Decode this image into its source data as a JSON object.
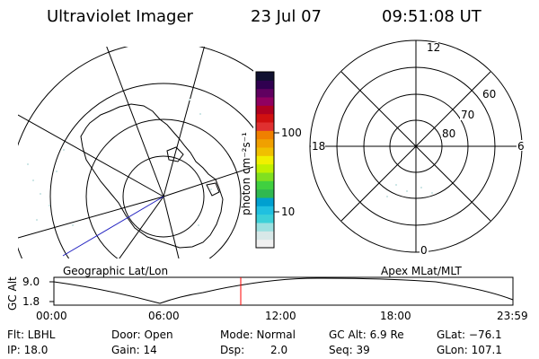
{
  "header": {
    "instrument": "Ultraviolet Imager",
    "date": "23 Jul 07",
    "time": "09:51:08 UT"
  },
  "left_map": {
    "caption": "Geographic Lat/Lon"
  },
  "right_map": {
    "caption": "Apex MLat/MLT",
    "mlt_labels": {
      "top": "12",
      "bottom": "0",
      "left": "18",
      "right": "6"
    },
    "lat_labels": [
      "60",
      "70",
      "80"
    ]
  },
  "colorbar": {
    "unit_label": "photon cm⁻²s⁻¹",
    "tick_labels": [
      "100",
      "10"
    ],
    "colors": [
      "#f0f0f0",
      "#d8e8e8",
      "#9be0e0",
      "#3cd0d8",
      "#20c0e0",
      "#00a0d0",
      "#30b850",
      "#40d040",
      "#80e020",
      "#c0f000",
      "#f0f000",
      "#f0c000",
      "#f0a000",
      "#f08000",
      "#e03030",
      "#d01010",
      "#b00020",
      "#900060",
      "#600060",
      "#300050",
      "#101030"
    ]
  },
  "altitude_plot": {
    "ylabel": "GC Alt",
    "yticks": [
      "9.0",
      "1.8"
    ],
    "xticks": [
      "00:00",
      "06:00",
      "12:00",
      "18:00",
      "23:59"
    ],
    "current_time_color": "#ff0000"
  },
  "info": {
    "filter": "Flt: LBHL",
    "ip": "IP: 18.0",
    "door": "Door: Open",
    "gain": "Gain: 14",
    "mode": "Mode: Normal",
    "dsp_label": "Dsp:",
    "dsp_value": "2.0",
    "gc_alt": "GC Alt: 6.9 Re",
    "seq": "Seq: 39",
    "glat": "GLat: −76.1",
    "glon": "GLon: 107.1"
  }
}
